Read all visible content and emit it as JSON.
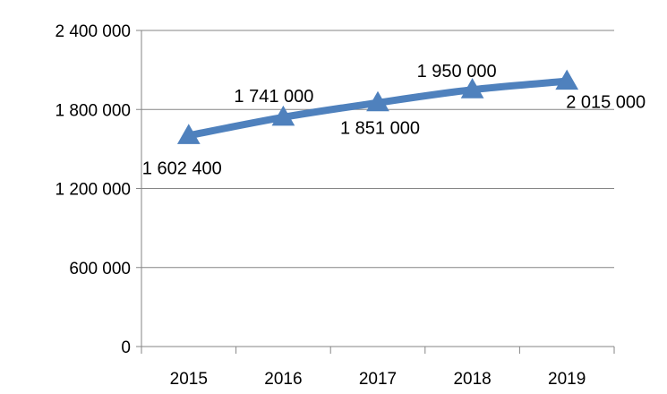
{
  "chart_data": {
    "type": "line",
    "categories": [
      "2015",
      "2016",
      "2017",
      "2018",
      "2019"
    ],
    "series": [
      {
        "values": [
          1602400,
          1741000,
          1851000,
          1950000,
          2015000
        ],
        "data_labels": [
          "1 602 400",
          "1 741 000",
          "1 851 000",
          "1 950 000",
          "2 015 000"
        ],
        "color": "#4F81BD",
        "marker": "triangle"
      }
    ],
    "ylim": [
      0,
      2400000
    ],
    "yticks": [
      0,
      600000,
      1200000,
      1800000,
      2400000
    ],
    "ytick_labels": [
      "0",
      "600 000",
      "1 200 000",
      "1 800 000",
      "2 400 000"
    ],
    "grid": true,
    "legend": "none",
    "title": "",
    "xlabel": "",
    "ylabel": ""
  }
}
